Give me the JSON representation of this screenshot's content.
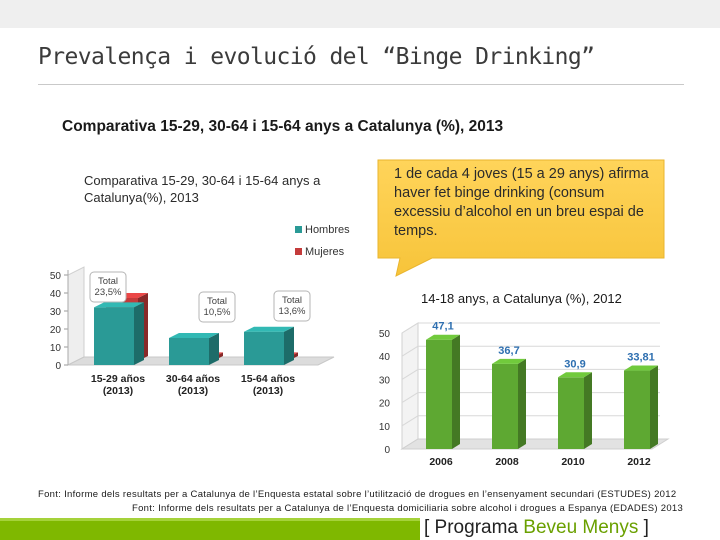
{
  "slide": {
    "title": "Prevalença i evolució del “Binge Drinking”",
    "subtitle": "Comparativa 15-29, 30-64 i 15-64 anys a Catalunya (%), 2013",
    "callout": "1 de cada 4 joves (15 a 29 anys) afirma haver fet binge drinking (consum excessiu d’alcohol en un breu espai de temps.",
    "source_1": "Font: Informe dels resultats per a Catalunya de l’Enquesta estatal sobre l’utilització de drogues en l’ensenyament secundari (ESTUDES) 2012",
    "source_2": "Font: Informe dels resultats per a Catalunya de l’Enquesta domiciliaria sobre alcohol i drogues a Espanya (EDADES) 2013",
    "footer_left": "[ Programa ",
    "footer_accent": "Beveu Menys",
    "footer_right": " ]"
  },
  "chart_data": [
    {
      "type": "bar",
      "title": "Comparativa 15-29, 30-64 i 15-64 anys a Catalunya(%), 2013",
      "categories": [
        "15-29 años (2013)",
        "30-64 años (2013)",
        "15-64 años (2013)"
      ],
      "category_lines": [
        [
          "15-29 años",
          "(2013)"
        ],
        [
          "30-64 años",
          "(2013)"
        ],
        [
          "15-64 años",
          "(2013)"
        ]
      ],
      "series": [
        {
          "name": "Hombres",
          "values": [
            32,
            15,
            18.5
          ],
          "color": "#2a9a96"
        },
        {
          "name": "Mujeres",
          "values": [
            35,
            2,
            2
          ],
          "color": "#c43b3b"
        }
      ],
      "annotations": [
        {
          "category": "15-29 años (2013)",
          "lines": [
            "Total",
            "23,5%"
          ]
        },
        {
          "category": "30-64 años (2013)",
          "lines": [
            "Total",
            "10,5%"
          ]
        },
        {
          "category": "15-64 años (2013)",
          "lines": [
            "Total",
            "13,6%"
          ]
        }
      ],
      "y_ticks": [
        "0",
        "10",
        "20",
        "30",
        "40",
        "50"
      ],
      "ylim": [
        0,
        50
      ],
      "legend_position": "top-right",
      "grid": false
    },
    {
      "type": "bar",
      "title": "14-18 anys, a Catalunya (%), 2012",
      "categories": [
        "2006",
        "2008",
        "2010",
        "2012"
      ],
      "values": [
        47.1,
        36.7,
        30.9,
        33.81
      ],
      "value_labels": [
        "47,1",
        "36,7",
        "30,9",
        "33,81"
      ],
      "color": "#5ea832",
      "label_color": "#2e6fb0",
      "y_ticks": [
        "0",
        "10",
        "20",
        "30",
        "40",
        "50"
      ],
      "ylim": [
        0,
        50
      ],
      "grid": true
    }
  ]
}
